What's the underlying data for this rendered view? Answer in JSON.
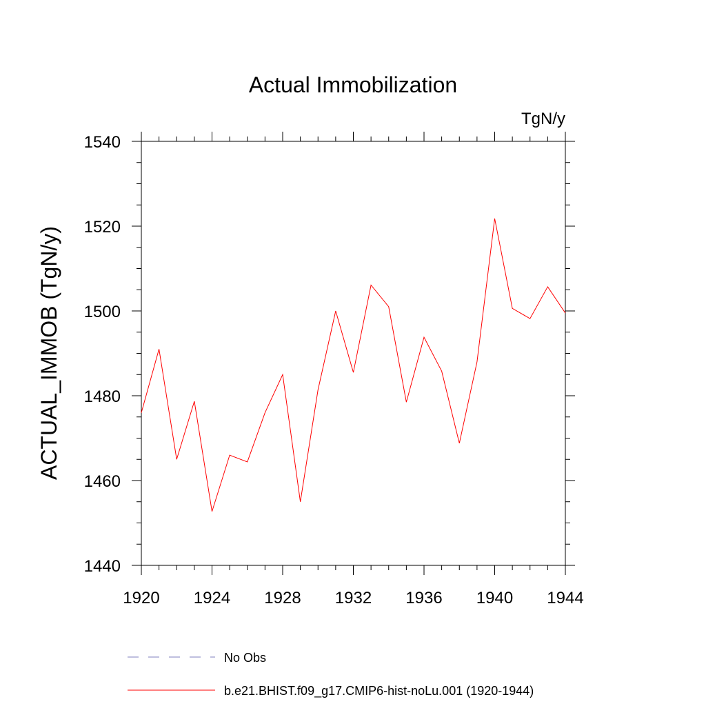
{
  "chart_data": {
    "type": "line",
    "title": "Actual Immobilization",
    "units_label": "TgN/y",
    "ylabel": "ACTUAL_IMMOB  (TgN/y)",
    "xlabel": "",
    "xlim": [
      1920,
      1944
    ],
    "ylim": [
      1440,
      1540
    ],
    "x_ticks": [
      1920,
      1924,
      1928,
      1932,
      1936,
      1940,
      1944
    ],
    "x_tick_labels": [
      "1920",
      "1924",
      "1928",
      "1932",
      "1936",
      "1940",
      "1944"
    ],
    "y_ticks": [
      1440,
      1460,
      1480,
      1500,
      1520,
      1540
    ],
    "y_tick_labels": [
      "1440",
      "1460",
      "1480",
      "1500",
      "1520",
      "1540"
    ],
    "x_minor_step": 1,
    "y_minor_step": 5,
    "grid": false,
    "legend_position": "bottom",
    "series": [
      {
        "name": "b.e21.BHIST.f09_g17.CMIP6-hist-noLu.001 (1920-1944)",
        "color": "#ff0000",
        "style": "solid",
        "x": [
          1920,
          1921,
          1922,
          1923,
          1924,
          1925,
          1926,
          1927,
          1928,
          1929,
          1930,
          1931,
          1932,
          1933,
          1934,
          1935,
          1936,
          1937,
          1938,
          1939,
          1940,
          1941,
          1942,
          1943,
          1944
        ],
        "y": [
          1476.0,
          1491.0,
          1465.0,
          1478.7,
          1452.7,
          1466.0,
          1464.4,
          1476.0,
          1485.0,
          1455.0,
          1481.4,
          1500.0,
          1485.5,
          1506.1,
          1501.0,
          1478.5,
          1493.8,
          1485.8,
          1468.8,
          1488.0,
          1521.8,
          1500.6,
          1498.2,
          1505.7,
          1499.5
        ]
      }
    ],
    "legend": [
      {
        "label": "No Obs",
        "color": "#7f7fbf",
        "style": "dashed"
      },
      {
        "label": "b.e21.BHIST.f09_g17.CMIP6-hist-noLu.001 (1920-1944)",
        "color": "#ff0000",
        "style": "solid"
      }
    ]
  }
}
